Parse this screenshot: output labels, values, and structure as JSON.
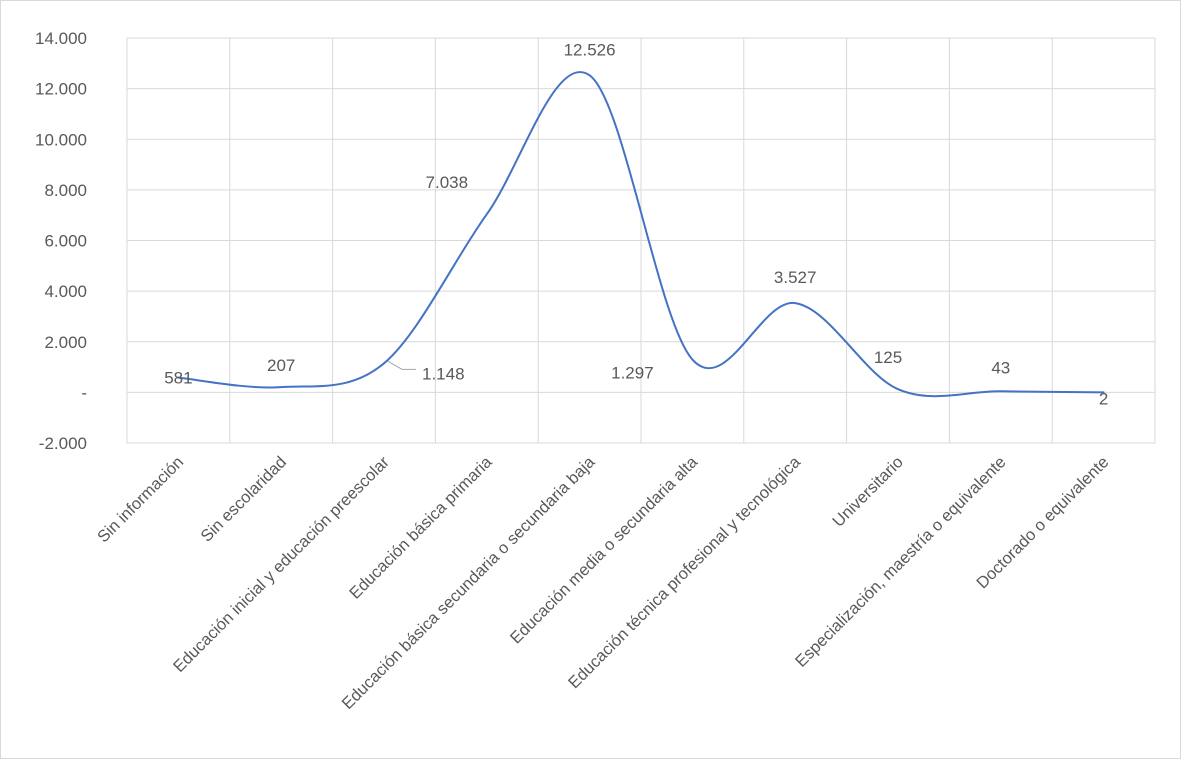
{
  "chart_data": {
    "type": "line",
    "smooth": true,
    "title": "",
    "xlabel": "",
    "ylabel": "",
    "categories": [
      "Sin información",
      "Sin escolaridad",
      "Educación inicial y educación preescolar",
      "Educación básica primaria",
      "Educación básica secundaria o secundaria baja",
      "Educación media o secundaria alta",
      "Educación técnica profesional y tecnológica",
      "Universitario",
      "Especialización, maestría o equivalente",
      "Doctorado o equivalente"
    ],
    "values": [
      581,
      207,
      1148,
      7038,
      12526,
      1297,
      3527,
      125,
      43,
      2
    ],
    "data_labels": [
      "581",
      "207",
      "1.148",
      "7.038",
      "12.526",
      "1.297",
      "3.527",
      "125",
      "43",
      "2"
    ],
    "ylim": [
      -2000,
      14000
    ],
    "yticks": [
      {
        "value": 14000,
        "label": "14.000"
      },
      {
        "value": 12000,
        "label": "12.000"
      },
      {
        "value": 10000,
        "label": "10.000"
      },
      {
        "value": 8000,
        "label": "8.000"
      },
      {
        "value": 6000,
        "label": "6.000"
      },
      {
        "value": 4000,
        "label": "4.000"
      },
      {
        "value": 2000,
        "label": "2.000"
      },
      {
        "value": 0,
        "label": "-"
      },
      {
        "value": -2000,
        "label": "-2.000"
      }
    ],
    "grid": true,
    "legend": "none",
    "line_color": "#4472c4",
    "grid_color": "#d9d9d9",
    "text_color": "#595959"
  }
}
